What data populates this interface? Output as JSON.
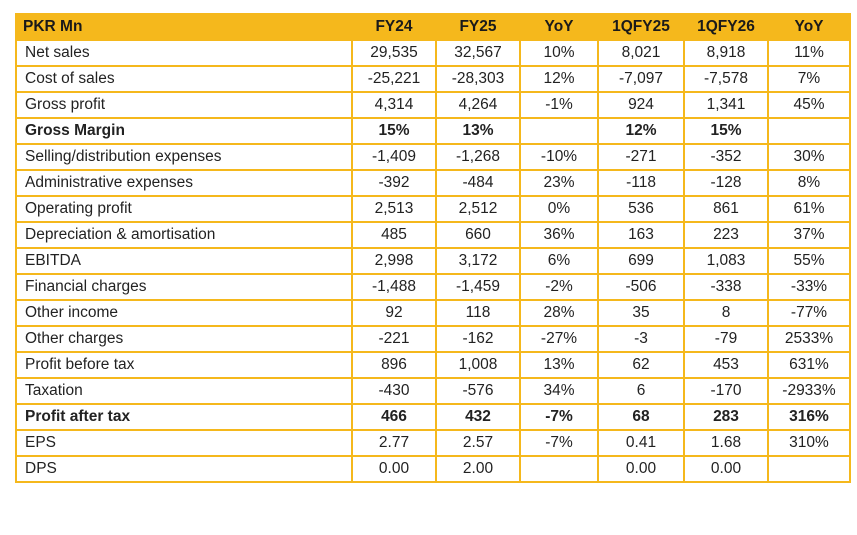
{
  "table": {
    "headers": [
      "PKR Mn",
      "FY24",
      "FY25",
      "YoY",
      "1QFY25",
      "1QFY26",
      "YoY"
    ],
    "rows": [
      {
        "label": "Net sales",
        "bold": false,
        "values": [
          "29,535",
          "32,567",
          "10%",
          "8,021",
          "8,918",
          "11%"
        ]
      },
      {
        "label": "Cost of sales",
        "bold": false,
        "values": [
          "-25,221",
          "-28,303",
          "12%",
          "-7,097",
          "-7,578",
          "7%"
        ]
      },
      {
        "label": "Gross profit",
        "bold": false,
        "values": [
          "4,314",
          "4,264",
          "-1%",
          "924",
          "1,341",
          "45%"
        ]
      },
      {
        "label": "Gross Margin",
        "bold": true,
        "values": [
          "15%",
          "13%",
          "",
          "12%",
          "15%",
          ""
        ]
      },
      {
        "label": "Selling/distribution expenses",
        "bold": false,
        "values": [
          "-1,409",
          "-1,268",
          "-10%",
          "-271",
          "-352",
          "30%"
        ]
      },
      {
        "label": "Administrative expenses",
        "bold": false,
        "values": [
          "-392",
          "-484",
          "23%",
          "-118",
          "-128",
          "8%"
        ]
      },
      {
        "label": "Operating profit",
        "bold": false,
        "values": [
          "2,513",
          "2,512",
          "0%",
          "536",
          "861",
          "61%"
        ]
      },
      {
        "label": "Depreciation & amortisation",
        "bold": false,
        "values": [
          "485",
          "660",
          "36%",
          "163",
          "223",
          "37%"
        ]
      },
      {
        "label": "EBITDA",
        "bold": false,
        "values": [
          "2,998",
          "3,172",
          "6%",
          "699",
          "1,083",
          "55%"
        ]
      },
      {
        "label": "Financial charges",
        "bold": false,
        "values": [
          "-1,488",
          "-1,459",
          "-2%",
          "-506",
          "-338",
          "-33%"
        ]
      },
      {
        "label": "Other income",
        "bold": false,
        "values": [
          "92",
          "118",
          "28%",
          "35",
          "8",
          "-77%"
        ]
      },
      {
        "label": "Other charges",
        "bold": false,
        "values": [
          "-221",
          "-162",
          "-27%",
          "-3",
          "-79",
          "2533%"
        ]
      },
      {
        "label": "Profit before tax",
        "bold": false,
        "values": [
          "896",
          "1,008",
          "13%",
          "62",
          "453",
          "631%"
        ]
      },
      {
        "label": "Taxation",
        "bold": false,
        "values": [
          "-430",
          "-576",
          "34%",
          "6",
          "-170",
          "-2933%"
        ]
      },
      {
        "label": "Profit after tax",
        "bold": true,
        "values": [
          "466",
          "432",
          "-7%",
          "68",
          "283",
          "316%"
        ]
      },
      {
        "label": "EPS",
        "bold": false,
        "values": [
          "2.77",
          "2.57",
          "-7%",
          "0.41",
          "1.68",
          "310%"
        ]
      },
      {
        "label": "DPS",
        "bold": false,
        "values": [
          "0.00",
          "2.00",
          "",
          "0.00",
          "0.00",
          ""
        ]
      }
    ]
  },
  "colors": {
    "accent": "#f5b81c",
    "text": "#222222"
  }
}
